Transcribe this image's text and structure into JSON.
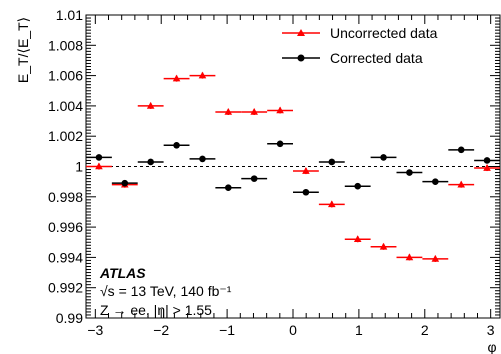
{
  "chart_data": {
    "type": "scatter",
    "xlabel": "φ",
    "ylabel": "E_T/⟨E_T⟩",
    "xlim": [
      -3.14159,
      3.14159
    ],
    "ylim": [
      0.99,
      1.01
    ],
    "x_ticks": [
      -3,
      -2,
      -1,
      0,
      1,
      2,
      3
    ],
    "y_ticks": [
      0.99,
      0.992,
      0.994,
      0.996,
      0.998,
      1,
      1.002,
      1.004,
      1.006,
      1.008,
      1.01
    ],
    "x_tick_labels": [
      "−3",
      "−2",
      "−1",
      "0",
      "1",
      "2",
      "3"
    ],
    "y_tick_labels": [
      "0.99",
      "0.992",
      "0.994",
      "0.996",
      "0.998",
      "1",
      "1.002",
      "1.004",
      "1.006",
      "1.008",
      "1.01"
    ],
    "reference_line": 1.0,
    "bin_half_width": 0.196,
    "legend_position": "top-right",
    "series": [
      {
        "name": "Uncorrected data",
        "color": "#ff0000",
        "marker": "triangle",
        "x": [
          -2.945,
          -2.553,
          -2.16,
          -1.767,
          -1.374,
          -0.982,
          -0.589,
          -0.196,
          0.196,
          0.589,
          0.982,
          1.374,
          1.767,
          2.16,
          2.553,
          2.945
        ],
        "y": [
          1.0,
          0.9988,
          1.004,
          1.0058,
          1.006,
          1.0036,
          1.0036,
          1.0037,
          0.9997,
          0.9975,
          0.9952,
          0.9947,
          0.994,
          0.9939,
          0.9988,
          0.9999
        ],
        "yerr": [
          0.0002,
          0.0002,
          0.0002,
          0.0002,
          0.0002,
          0.0002,
          0.0002,
          0.0002,
          0.0002,
          0.0002,
          0.0002,
          0.0002,
          0.0002,
          0.0002,
          0.0002,
          0.0002
        ]
      },
      {
        "name": "Corrected data",
        "color": "#000000",
        "marker": "circle",
        "x": [
          -2.945,
          -2.553,
          -2.16,
          -1.767,
          -1.374,
          -0.982,
          -0.589,
          -0.196,
          0.196,
          0.589,
          0.982,
          1.374,
          1.767,
          2.16,
          2.553,
          2.945
        ],
        "y": [
          1.0006,
          0.9989,
          1.0003,
          1.0014,
          1.0005,
          0.9986,
          0.9992,
          1.0015,
          0.9983,
          1.0003,
          0.9987,
          1.0006,
          0.9996,
          0.999,
          1.0011,
          1.0004
        ],
        "yerr": [
          0.0002,
          0.0002,
          0.0002,
          0.0002,
          0.0002,
          0.0002,
          0.0002,
          0.0002,
          0.0002,
          0.0002,
          0.0002,
          0.0002,
          0.0002,
          0.0002,
          0.0002,
          0.0002
        ]
      }
    ],
    "annotations": {
      "experiment": "ATLAS",
      "energy_lumi": "√s = 13 TeV, 140 fb⁻¹",
      "process": "Z → ee, |η| > 1.55"
    }
  }
}
